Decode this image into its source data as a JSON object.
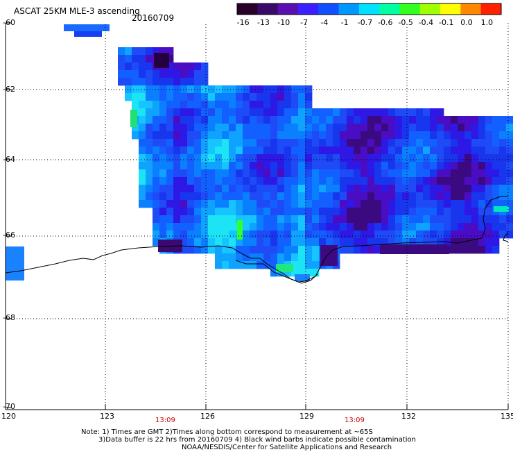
{
  "header": {
    "title": "ASCAT 25KM MLE-3 ascending",
    "date": "20160709"
  },
  "colorbar": {
    "labels": [
      "-16",
      "-13",
      "-10",
      "-7",
      "-4",
      "-1",
      "-0.7",
      "-0.6",
      "-0.5",
      "-0.4",
      "-0.1",
      "0.0",
      "1.0"
    ],
    "colors": [
      "#2a0028",
      "#3a0a6a",
      "#5a10b0",
      "#3a20ff",
      "#1050ff",
      "#0098ff",
      "#00e0ff",
      "#00ffa0",
      "#30ff20",
      "#a0ff00",
      "#ffff00",
      "#ff8800",
      "#ff2000"
    ]
  },
  "map": {
    "lat_labels": [
      "-60",
      "-62",
      "-64",
      "-66",
      "-68",
      "-70"
    ],
    "lon_labels": [
      "120",
      "123",
      "126",
      "129",
      "132",
      "135"
    ],
    "time_labels": [
      "13:09",
      "13:09"
    ],
    "time_color": "#d00000"
  },
  "notes": {
    "line1": "Note: 1) Times are GMT 2)Times along bottom correspond to measurement at ~65S",
    "line2": "3)Data buffer is 22 hrs from 20160709 4) Black wind barbs indicate possible contamination",
    "line3": "NOAA/NESDIS/Center for Satellite Applications and Research"
  }
}
